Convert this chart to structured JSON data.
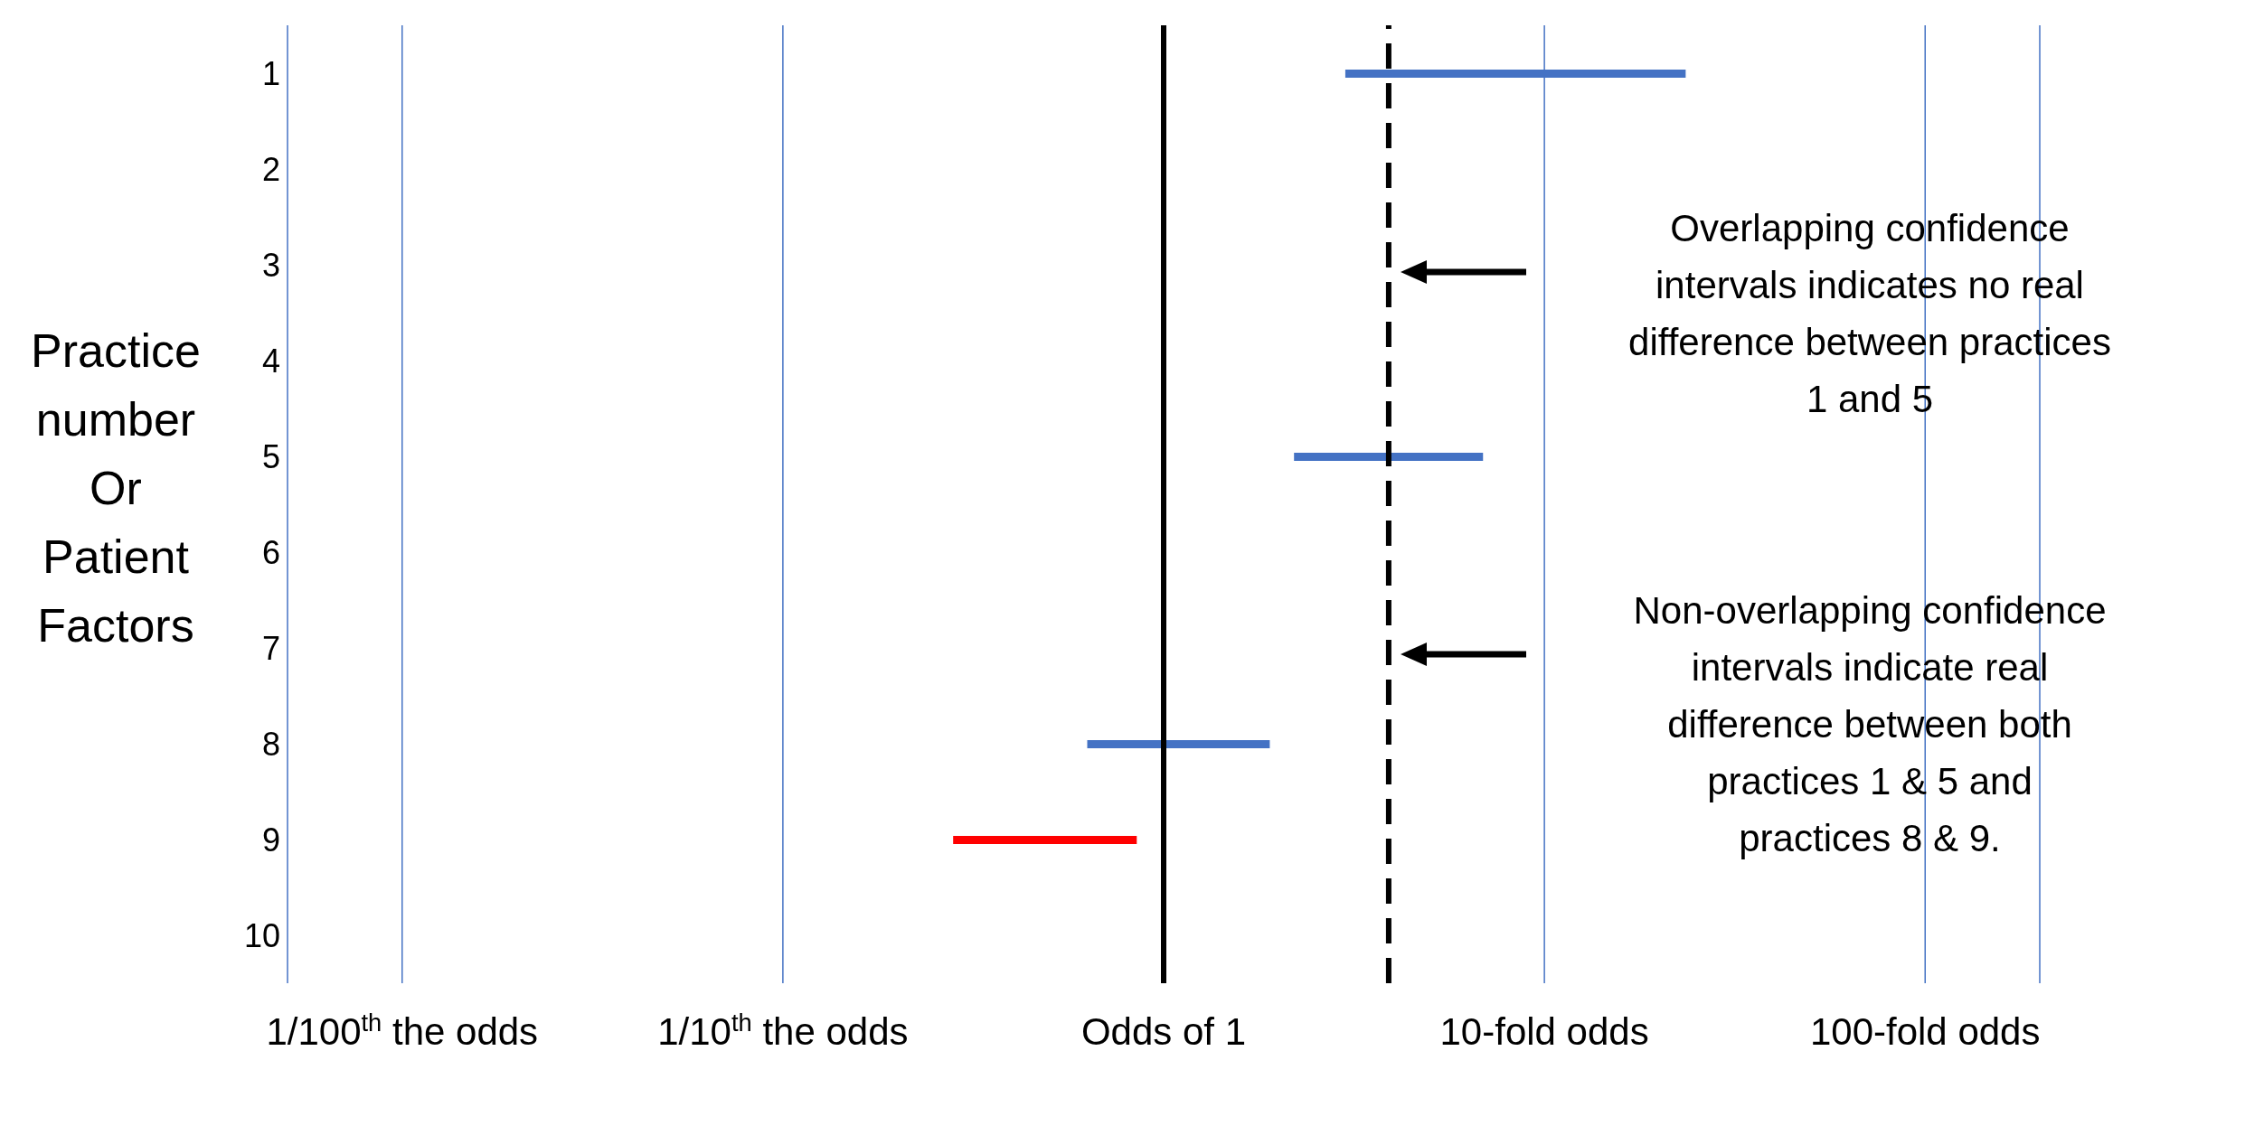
{
  "chart_data": {
    "type": "bar",
    "orientation": "horizontal",
    "ylabel": "Practice number Or Patient Factors",
    "categories": [
      "1",
      "2",
      "3",
      "4",
      "5",
      "6",
      "7",
      "8",
      "9",
      "10"
    ],
    "base": [
      3.0,
      null,
      null,
      null,
      2.2,
      null,
      null,
      0.63,
      0.28,
      null
    ],
    "values": [
      20.5,
      null,
      null,
      null,
      4.7,
      null,
      null,
      1.27,
      0.57,
      null
    ],
    "colors": [
      "#4472c4",
      null,
      null,
      null,
      "#4472c4",
      null,
      null,
      "#4472c4",
      "#ff0000",
      null
    ],
    "log": "x",
    "xlim": [
      0.005,
      200
    ],
    "xticks": [
      {
        "value": 0.01,
        "label": "1/100$^{th}$ the odds"
      },
      {
        "value": 0.1,
        "label": "1/10$^{th}$ the odds"
      },
      {
        "value": 1,
        "label": "Odds of 1"
      },
      {
        "value": 10,
        "label": "10-fold odds"
      },
      {
        "value": 100,
        "label": "100-fold odds"
      }
    ],
    "grid": "x",
    "ref_lines": [
      {
        "axis": "x",
        "value": 1,
        "color": "#000000",
        "line_style": "solid"
      },
      {
        "axis": "x",
        "value": 3.9,
        "color": "#000000",
        "line_style": "dashed"
      }
    ],
    "annotations": [
      "Overlapping confidence intervals indicates no real difference between practices 1 and 5",
      "Non-overlapping confidence intervals indicate real difference between both practices 1 & 5 and practices 8 & 9."
    ]
  }
}
